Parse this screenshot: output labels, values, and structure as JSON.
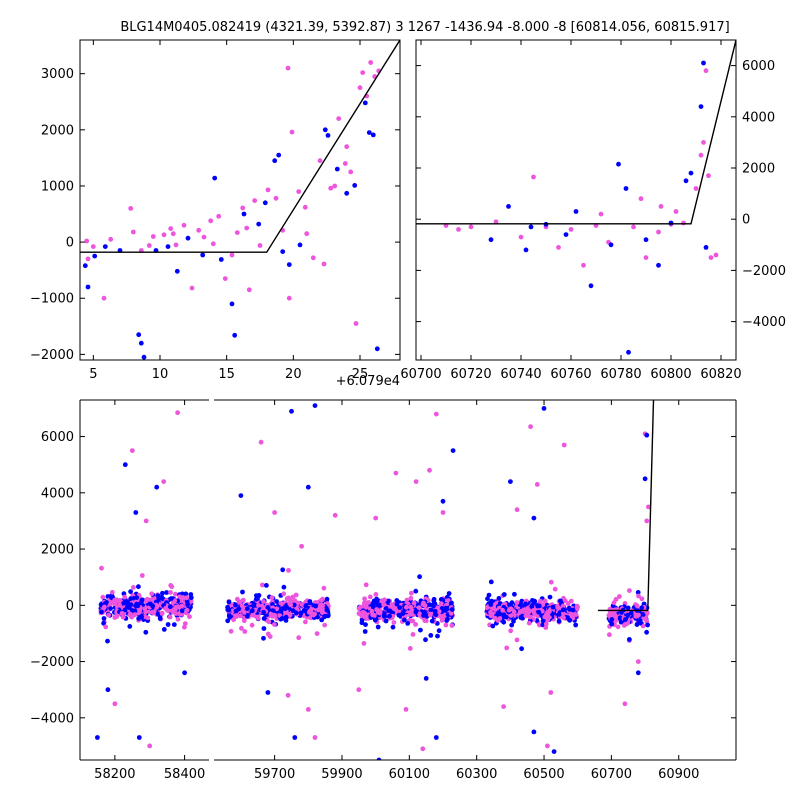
{
  "title": "BLG14M0405.082419 (4321.39, 5392.87)   3 1267 -1436.94 -8.000 -8 [60814.056, 60815.917]",
  "colors": {
    "series_blue": "#0000ff",
    "series_pink": "#ee55dd",
    "model_line": "#000000",
    "axes": "#000000"
  },
  "chart_data": [
    {
      "type": "scatter",
      "panel": "zoom-left",
      "xlim": [
        4,
        28
      ],
      "ylim": [
        -2100,
        3600
      ],
      "x_offset_label": "+6.079e4",
      "xticks": [
        5,
        10,
        15,
        20,
        25
      ],
      "yticks": [
        -2000,
        -1000,
        0,
        1000,
        2000,
        3000
      ],
      "xtick_labels": [
        "5",
        "10",
        "15",
        "20",
        "25"
      ],
      "ytick_labels": [
        "−2000",
        "−1000",
        "0",
        "1000",
        "2000",
        "3000"
      ],
      "model": {
        "x": [
          4,
          18,
          28
        ],
        "y": [
          -180,
          -180,
          3600
        ]
      },
      "series": [
        {
          "color": "pink",
          "points": [
            [
              4.5,
              20
            ],
            [
              5,
              -80
            ],
            [
              4.6,
              -300
            ],
            [
              5.8,
              -1000
            ],
            [
              7.8,
              600
            ],
            [
              8,
              180
            ],
            [
              8.6,
              -150
            ],
            [
              9.2,
              -60
            ],
            [
              9.5,
              100
            ],
            [
              10.3,
              130
            ],
            [
              10.8,
              240
            ],
            [
              11.2,
              -50
            ],
            [
              11.8,
              300
            ],
            [
              12.4,
              -820
            ],
            [
              12.9,
              210
            ],
            [
              13.3,
              90
            ],
            [
              13.8,
              380
            ],
            [
              14.4,
              460
            ],
            [
              14.9,
              -650
            ],
            [
              15.4,
              -230
            ],
            [
              15.8,
              170
            ],
            [
              16.2,
              610
            ],
            [
              16.7,
              -850
            ],
            [
              17.1,
              740
            ],
            [
              17.5,
              -60
            ],
            [
              18.1,
              930
            ],
            [
              18.7,
              780
            ],
            [
              19.2,
              210
            ],
            [
              19.7,
              -1000
            ],
            [
              19.6,
              3100
            ],
            [
              19.9,
              1960
            ],
            [
              20.4,
              900
            ],
            [
              20.9,
              620
            ],
            [
              21.5,
              -280
            ],
            [
              22,
              1450
            ],
            [
              22.3,
              -390
            ],
            [
              22.8,
              960
            ],
            [
              23.1,
              1000
            ],
            [
              23.4,
              2200
            ],
            [
              23.9,
              1400
            ],
            [
              24.3,
              1250
            ],
            [
              24.7,
              -1450
            ],
            [
              25,
              2750
            ],
            [
              25.2,
              3020
            ],
            [
              25.5,
              2600
            ],
            [
              25.8,
              3200
            ],
            [
              26.1,
              2950
            ],
            [
              26.4,
              3050
            ],
            [
              6.3,
              50
            ],
            [
              11,
              150
            ],
            [
              14,
              -30
            ],
            [
              16.5,
              250
            ],
            [
              21,
              150
            ],
            [
              24,
              1700
            ]
          ]
        },
        {
          "color": "blue",
          "points": [
            [
              4.4,
              -420
            ],
            [
              4.6,
              -800
            ],
            [
              5.1,
              -250
            ],
            [
              5.9,
              -80
            ],
            [
              8.4,
              -1650
            ],
            [
              8.6,
              -1800
            ],
            [
              8.8,
              -2050
            ],
            [
              9.7,
              -150
            ],
            [
              10.6,
              -80
            ],
            [
              11.3,
              -520
            ],
            [
              12.1,
              70
            ],
            [
              13.2,
              -230
            ],
            [
              14.1,
              1140
            ],
            [
              14.6,
              -310
            ],
            [
              15.4,
              -1100
            ],
            [
              15.6,
              -1660
            ],
            [
              16.3,
              500
            ],
            [
              17.4,
              320
            ],
            [
              18.6,
              1450
            ],
            [
              18.9,
              1550
            ],
            [
              19.2,
              -170
            ],
            [
              19.7,
              -400
            ],
            [
              20.5,
              -50
            ],
            [
              22.4,
              2000
            ],
            [
              22.6,
              1900
            ],
            [
              23.3,
              1300
            ],
            [
              24,
              870
            ],
            [
              24.6,
              1010
            ],
            [
              25.4,
              2480
            ],
            [
              25.7,
              1950
            ],
            [
              26,
              1910
            ],
            [
              26.3,
              -1900
            ],
            [
              17.9,
              700
            ],
            [
              7,
              -150
            ]
          ]
        }
      ]
    },
    {
      "type": "scatter",
      "panel": "zoom-right",
      "xlim": [
        60698,
        60826
      ],
      "ylim": [
        -5500,
        7000
      ],
      "xticks": [
        60700,
        60720,
        60740,
        60760,
        60780,
        60800,
        60820
      ],
      "yticks": [
        -4000,
        -2000,
        0,
        2000,
        4000,
        6000
      ],
      "xtick_labels": [
        "60700",
        "60720",
        "60740",
        "60760",
        "60780",
        "60800",
        "60820"
      ],
      "ytick_labels": [
        "−4000",
        "−2000",
        "0",
        "2000",
        "4000",
        "6000"
      ],
      "model": {
        "x": [
          60698,
          60808,
          60826
        ],
        "y": [
          -180,
          -180,
          7000
        ]
      },
      "series": [
        {
          "color": "pink",
          "points": [
            [
              60710,
              -250
            ],
            [
              60715,
              -400
            ],
            [
              60720,
              -300
            ],
            [
              60730,
              -100
            ],
            [
              60740,
              -700
            ],
            [
              60745,
              1650
            ],
            [
              60750,
              -300
            ],
            [
              60755,
              -1100
            ],
            [
              60760,
              -400
            ],
            [
              60765,
              -1800
            ],
            [
              60770,
              -250
            ],
            [
              60775,
              -900
            ],
            [
              60785,
              -300
            ],
            [
              60790,
              -1500
            ],
            [
              60795,
              -500
            ],
            [
              60800,
              -200
            ],
            [
              60805,
              -150
            ],
            [
              60810,
              1200
            ],
            [
              60812,
              2500
            ],
            [
              60813,
              3000
            ],
            [
              60814,
              5800
            ],
            [
              60815,
              1700
            ],
            [
              60816,
              -1500
            ],
            [
              60818,
              -1400
            ],
            [
              60802,
              300
            ],
            [
              60796,
              500
            ],
            [
              60788,
              800
            ],
            [
              60772,
              200
            ]
          ]
        },
        {
          "color": "blue",
          "points": [
            [
              60728,
              -800
            ],
            [
              60735,
              500
            ],
            [
              60742,
              -1200
            ],
            [
              60750,
              -200
            ],
            [
              60758,
              -600
            ],
            [
              60768,
              -2600
            ],
            [
              60776,
              -1000
            ],
            [
              60782,
              1200
            ],
            [
              60783,
              -5200
            ],
            [
              60790,
              -800
            ],
            [
              60795,
              -1800
            ],
            [
              60800,
              -150
            ],
            [
              60806,
              1500
            ],
            [
              60808,
              1800
            ],
            [
              60812,
              4400
            ],
            [
              60813,
              6100
            ],
            [
              60814,
              -1100
            ],
            [
              60779,
              2150
            ],
            [
              60762,
              300
            ],
            [
              60744,
              -300
            ]
          ]
        }
      ]
    },
    {
      "type": "scatter",
      "panel": "full-season",
      "segments": [
        {
          "xlim": [
            58100,
            58470
          ],
          "xticks": [
            58200,
            58400
          ],
          "xtick_labels": [
            "58200",
            "58400"
          ]
        },
        {
          "xlim": [
            59520,
            61070
          ],
          "xticks": [
            59700,
            59900,
            60100,
            60300,
            60500,
            60700,
            60900
          ],
          "xtick_labels": [
            "59700",
            "59900",
            "60100",
            "60300",
            "60500",
            "60700",
            "60900"
          ]
        }
      ],
      "ylim": [
        -5500,
        7300
      ],
      "yticks": [
        -4000,
        -2000,
        0,
        2000,
        4000,
        6000
      ],
      "ytick_labels": [
        "−4000",
        "−2000",
        "0",
        "2000",
        "4000",
        "6000"
      ],
      "model": {
        "x": [
          60660,
          60808,
          60825
        ],
        "y": [
          -180,
          -180,
          7300
        ]
      },
      "season_clusters": [
        {
          "x_range": [
            58160,
            58420
          ],
          "center": -30,
          "spread": 550
        },
        {
          "x_range": [
            59560,
            59860
          ],
          "center": -150,
          "spread": 520
        },
        {
          "x_range": [
            59950,
            60230
          ],
          "center": -180,
          "spread": 520
        },
        {
          "x_range": [
            60330,
            60600
          ],
          "center": -200,
          "spread": 530
        },
        {
          "x_range": [
            60690,
            60808
          ],
          "center": -350,
          "spread": 500
        }
      ],
      "series": [
        {
          "color": "pink",
          "points": [
            [
              58250,
              5500
            ],
            [
              58290,
              3000
            ],
            [
              58340,
              4400
            ],
            [
              58380,
              6850
            ],
            [
              58300,
              -5000
            ],
            [
              58200,
              -3500
            ],
            [
              59660,
              5800
            ],
            [
              59700,
              3300
            ],
            [
              59740,
              -3200
            ],
            [
              59780,
              2100
            ],
            [
              59800,
              -3700
            ],
            [
              59820,
              -4700
            ],
            [
              59880,
              3200
            ],
            [
              59950,
              -3000
            ],
            [
              60000,
              3100
            ],
            [
              60060,
              4700
            ],
            [
              60120,
              4400
            ],
            [
              60160,
              4800
            ],
            [
              60180,
              6800
            ],
            [
              60200,
              3300
            ],
            [
              60140,
              -5100
            ],
            [
              60090,
              -3700
            ],
            [
              60380,
              -3600
            ],
            [
              60420,
              3400
            ],
            [
              60460,
              6350
            ],
            [
              60480,
              4300
            ],
            [
              60510,
              -5000
            ],
            [
              60560,
              5700
            ],
            [
              60520,
              -3100
            ],
            [
              60740,
              -3500
            ],
            [
              60780,
              -2000
            ],
            [
              60800,
              6100
            ],
            [
              60805,
              3000
            ],
            [
              60810,
              3500
            ]
          ]
        },
        {
          "color": "blue",
          "points": [
            [
              58150,
              -4700
            ],
            [
              58180,
              -3000
            ],
            [
              58230,
              5000
            ],
            [
              58270,
              -4700
            ],
            [
              58320,
              4200
            ],
            [
              58260,
              3300
            ],
            [
              58400,
              -2400
            ],
            [
              59600,
              3900
            ],
            [
              59680,
              -3100
            ],
            [
              59750,
              6900
            ],
            [
              59760,
              -4700
            ],
            [
              59820,
              7100
            ],
            [
              59800,
              4200
            ],
            [
              60010,
              -5500
            ],
            [
              60150,
              -2600
            ],
            [
              60200,
              3700
            ],
            [
              60230,
              5500
            ],
            [
              60180,
              -4700
            ],
            [
              60400,
              4400
            ],
            [
              60470,
              -4500
            ],
            [
              60500,
              7000
            ],
            [
              60530,
              -5200
            ],
            [
              60470,
              3100
            ],
            [
              60800,
              4500
            ],
            [
              60805,
              6050
            ],
            [
              60780,
              -2400
            ]
          ]
        }
      ]
    }
  ]
}
